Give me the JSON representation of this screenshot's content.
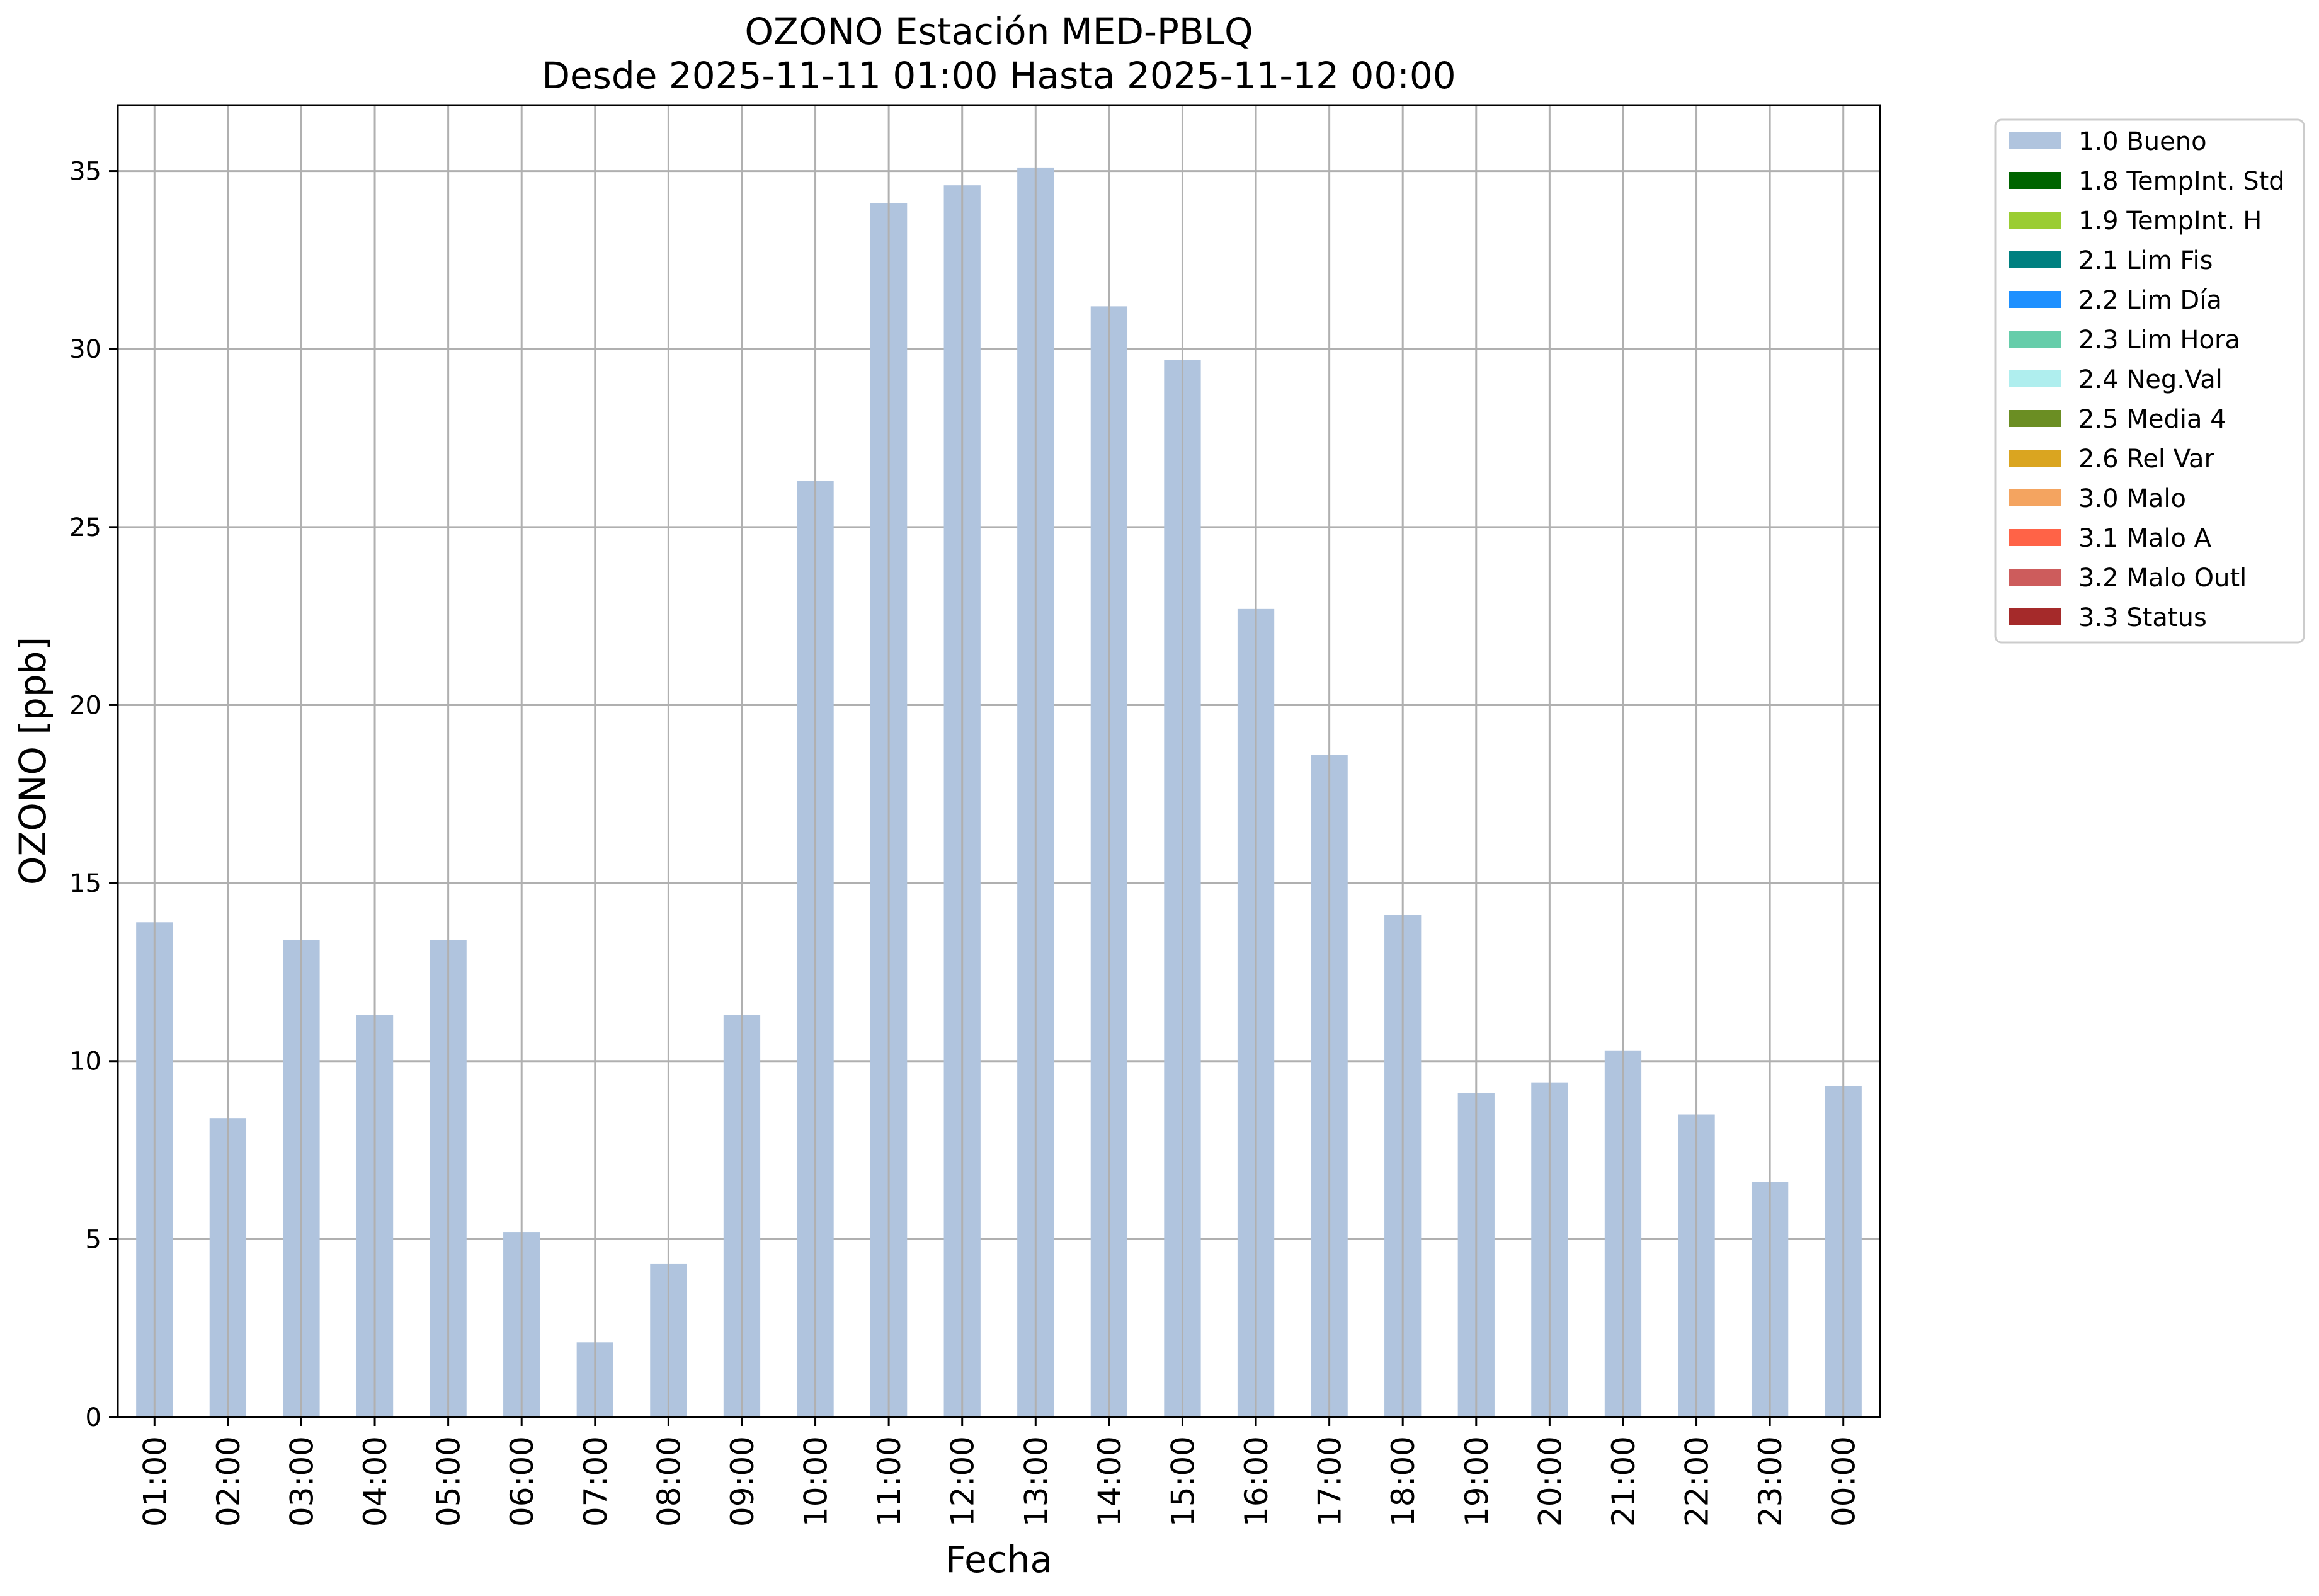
{
  "chart_data": {
    "type": "bar",
    "title_line1": "OZONO Estación MED-PBLQ",
    "title_line2": "Desde 2025-11-11 01:00 Hasta 2025-11-12 00:00",
    "xlabel": "Fecha",
    "ylabel": "OZONO [ppb]",
    "categories": [
      "01:00",
      "02:00",
      "03:00",
      "04:00",
      "05:00",
      "06:00",
      "07:00",
      "08:00",
      "09:00",
      "10:00",
      "11:00",
      "12:00",
      "13:00",
      "14:00",
      "15:00",
      "16:00",
      "17:00",
      "18:00",
      "19:00",
      "20:00",
      "21:00",
      "22:00",
      "23:00",
      "00:00"
    ],
    "values": [
      13.9,
      8.4,
      13.4,
      11.3,
      13.4,
      5.2,
      2.1,
      4.3,
      11.3,
      26.3,
      34.1,
      34.6,
      35.1,
      31.2,
      29.7,
      22.7,
      18.6,
      14.1,
      9.1,
      9.4,
      10.3,
      8.5,
      6.6,
      9.3
    ],
    "bar_color": "#b0c4de",
    "ylim": [
      0,
      36.85
    ],
    "yticks": [
      0,
      5,
      10,
      15,
      20,
      25,
      30,
      35
    ],
    "grid": true,
    "legend_position": "outside-top-right",
    "legend": [
      {
        "label": "1.0 Bueno",
        "color": "#b0c4de"
      },
      {
        "label": "1.8 TempInt. Std",
        "color": "#006400"
      },
      {
        "label": "1.9 TempInt. H",
        "color": "#9acd32"
      },
      {
        "label": "2.1 Lim Fis",
        "color": "#008080"
      },
      {
        "label": "2.2 Lim Día",
        "color": "#1e90ff"
      },
      {
        "label": "2.3 Lim Hora",
        "color": "#66cdaa"
      },
      {
        "label": "2.4 Neg.Val",
        "color": "#afeeee"
      },
      {
        "label": "2.5 Media 4",
        "color": "#6b8e23"
      },
      {
        "label": "2.6 Rel Var",
        "color": "#daa520"
      },
      {
        "label": "3.0 Malo",
        "color": "#f4a460"
      },
      {
        "label": "3.1 Malo A",
        "color": "#ff6347"
      },
      {
        "label": "3.2 Malo Outl",
        "color": "#cd5c5c"
      },
      {
        "label": "3.3 Status",
        "color": "#a52a2a"
      }
    ]
  }
}
